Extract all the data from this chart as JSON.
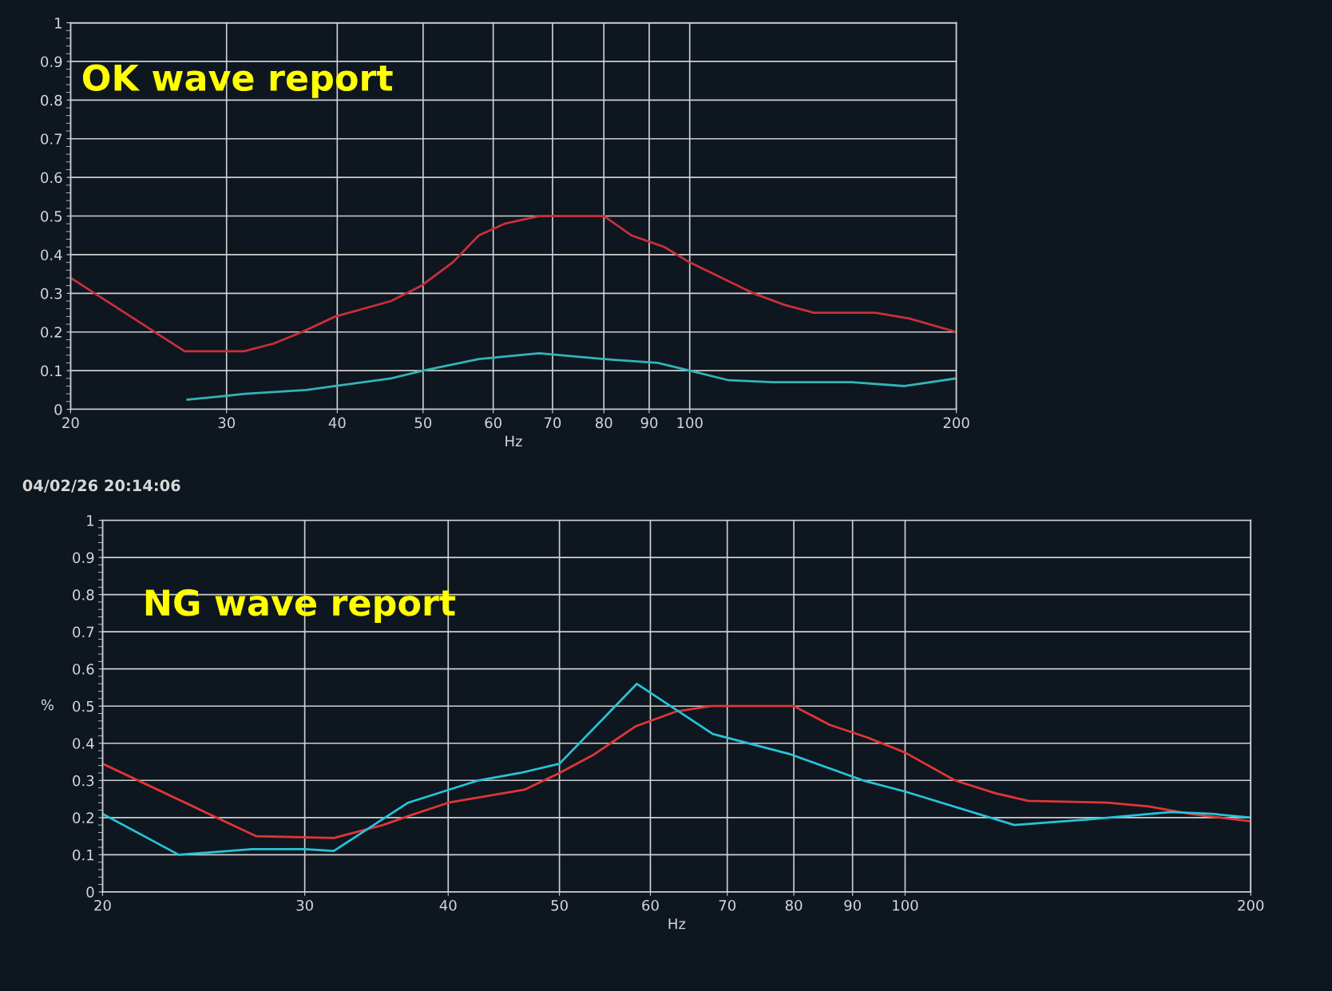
{
  "chart_data": [
    {
      "type": "line",
      "title": "OK wave report",
      "xlabel": "Hz",
      "log": "x",
      "xlim": [
        20,
        200
      ],
      "xticks": [
        20,
        30,
        40,
        50,
        60,
        70,
        80,
        90,
        100,
        200
      ],
      "ylim": [
        0,
        1
      ],
      "yticks": [
        0,
        0.1,
        0.2,
        0.3,
        0.4,
        0.5,
        0.6,
        0.7,
        0.8,
        0.9,
        1
      ],
      "grid": true,
      "series": [
        {
          "color": "#c8303a",
          "x": [
            20,
            26.9,
            31.4,
            33.9,
            36.5,
            39.8,
            46,
            49.8,
            54,
            57.8,
            61.8,
            67.6,
            80,
            85.9,
            93.6,
            100,
            118,
            128,
            138,
            162,
            177,
            200
          ],
          "values": [
            0.34,
            0.15,
            0.15,
            0.17,
            0.2,
            0.24,
            0.28,
            0.32,
            0.38,
            0.45,
            0.48,
            0.5,
            0.5,
            0.45,
            0.42,
            0.38,
            0.3,
            0.27,
            0.25,
            0.25,
            0.235,
            0.2
          ]
        },
        {
          "color": "#33b4b6",
          "x": [
            27.1,
            30,
            31.5,
            36.9,
            39.8,
            46,
            50,
            57.8,
            67.6,
            80,
            92,
            100,
            110.7,
            124.4,
            152.5,
            174.8,
            200
          ],
          "values": [
            0.025,
            0.035,
            0.04,
            0.05,
            0.06,
            0.08,
            0.1,
            0.13,
            0.145,
            0.13,
            0.12,
            0.1,
            0.075,
            0.07,
            0.07,
            0.06,
            0.08
          ]
        }
      ]
    },
    {
      "type": "line",
      "title": "NG wave report",
      "xlabel": "Hz",
      "ylabel": "%",
      "annotations": [
        "04/02/26 20:14:06"
      ],
      "log": "x",
      "xlim": [
        20,
        200
      ],
      "xticks": [
        20,
        30,
        40,
        50,
        60,
        70,
        80,
        90,
        100,
        200
      ],
      "ylim": [
        0,
        1
      ],
      "yticks": [
        0,
        0.1,
        0.2,
        0.3,
        0.4,
        0.5,
        0.6,
        0.7,
        0.8,
        0.9,
        1
      ],
      "grid": true,
      "series": [
        {
          "color": "#e03636",
          "x": [
            20,
            27.2,
            31.8,
            35.1,
            36.6,
            40,
            46.6,
            50,
            53.6,
            58.2,
            63.1,
            67.8,
            80,
            85.9,
            92.8,
            100,
            110.5,
            120,
            128,
            150,
            163,
            177,
            200
          ],
          "values": [
            0.345,
            0.15,
            0.145,
            0.18,
            0.2,
            0.24,
            0.275,
            0.32,
            0.37,
            0.445,
            0.485,
            0.5,
            0.5,
            0.45,
            0.415,
            0.375,
            0.3,
            0.265,
            0.245,
            0.24,
            0.23,
            0.21,
            0.19
          ]
        },
        {
          "color": "#26c4d8",
          "x": [
            20,
            23.3,
            27,
            30,
            31.8,
            36.9,
            42.5,
            46.2,
            50,
            58.4,
            68,
            79.5,
            91.9,
            100,
            124.5,
            144.5,
            170.5,
            185,
            200
          ],
          "values": [
            0.21,
            0.1,
            0.115,
            0.115,
            0.11,
            0.24,
            0.3,
            0.32,
            0.345,
            0.56,
            0.425,
            0.37,
            0.3,
            0.27,
            0.18,
            0.195,
            0.215,
            0.21,
            0.2
          ]
        }
      ]
    }
  ]
}
